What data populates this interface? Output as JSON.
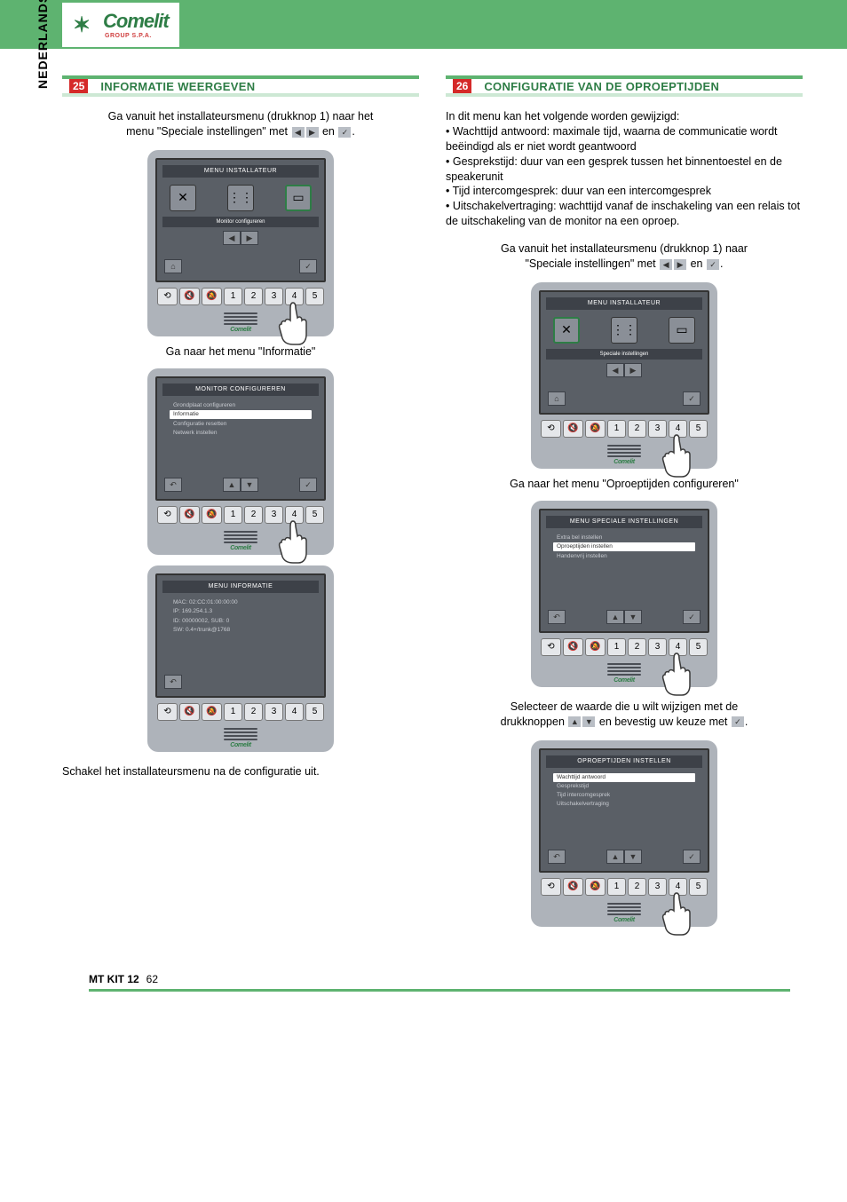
{
  "brand": {
    "name": "Comelit",
    "sub": "GROUP S.P.A."
  },
  "language_tab": "NEDERLANDS",
  "footer": {
    "doc": "MT KIT 12",
    "page": "62"
  },
  "left": {
    "section_num": "25",
    "section_title": "INFORMATIE WEERGEVEN",
    "intro1": "Ga vanuit het installateursmenu (drukknop 1) naar het",
    "intro2": "menu \"Speciale instellingen\" met ",
    "intro3": " en ",
    "intro_end": ".",
    "device1": {
      "title": "MENU INSTALLATEUR",
      "subbar": "Monitor configureren",
      "icons": [
        "✕",
        "⋮⋮",
        "▭"
      ],
      "highlight_idx": 2
    },
    "caption1": "Ga naar het menu \"Informatie\"",
    "device2": {
      "title": "MONITOR CONFIGUREREN",
      "menu": [
        {
          "t": "Grondplaat configureren",
          "sel": false
        },
        {
          "t": "Informatie",
          "sel": true
        },
        {
          "t": "Configuratie resetten",
          "sel": false
        },
        {
          "t": "Netwerk instellen",
          "sel": false
        }
      ]
    },
    "device3": {
      "title": "MENU INFORMATIE",
      "info": [
        "MAC: 02:CC:01:00:00:00",
        "IP: 169.254.1.3",
        "ID: 00000002, SUB: 0",
        "SW: 0.4+/trunk@1768"
      ]
    },
    "final": "Schakel het installateursmenu na de configuratie uit."
  },
  "right": {
    "section_num": "26",
    "section_title": "CONFIGURATIE VAN DE OPROEPTIJDEN",
    "intro": "In dit menu kan het volgende worden gewijzigd:",
    "bullets": [
      "• Wachttijd antwoord: maximale tijd, waarna de communicatie wordt beëindigd als er niet wordt geantwoord",
      "• Gesprekstijd: duur van een gesprek tussen het binnentoestel en de speakerunit",
      "• Tijd intercomgesprek: duur van een intercomgesprek",
      "• Uitschakelvertraging: wachttijd vanaf de inschakeling van een relais tot de uitschakeling van de monitor na een oproep."
    ],
    "step1a": "Ga vanuit het installateursmenu (drukknop 1) naar",
    "step1b": "\"Speciale instellingen\" met ",
    "step1c": " en ",
    "step1_end": ".",
    "device1": {
      "title": "MENU INSTALLATEUR",
      "subbar": "Speciale instellingen",
      "icons": [
        "✕",
        "⋮⋮",
        "▭"
      ],
      "highlight_idx": 0
    },
    "caption2": "Ga naar het menu \"Oproeptijden configureren\"",
    "device2": {
      "title": "MENU SPECIALE INSTELLINGEN",
      "menu": [
        {
          "t": "Extra bel instellen",
          "sel": false
        },
        {
          "t": "Oproeptijden instellen",
          "sel": true
        },
        {
          "t": "Handenvrij instellen",
          "sel": false
        }
      ]
    },
    "step3a": "Selecteer de waarde die u wilt wijzigen met de",
    "step3b": "drukknoppen ",
    "step3c": " en bevestig uw keuze met ",
    "step3_end": ".",
    "device3": {
      "title": "OPROEPTIJDEN INSTELLEN",
      "menu": [
        {
          "t": "Wachttijd antwoord",
          "sel": true
        },
        {
          "t": "Gesprekstijd",
          "sel": false
        },
        {
          "t": "Tijd intercomgesprek",
          "sel": false
        },
        {
          "t": "Uitschakelvertraging",
          "sel": false
        }
      ]
    }
  },
  "softkeys": {
    "icons": [
      "⟲",
      "🔇",
      "🔕"
    ],
    "nums": [
      "1",
      "2",
      "3",
      "4",
      "5"
    ]
  },
  "nav": {
    "home": "⌂",
    "left": "◀",
    "right": "▶",
    "up": "▲",
    "down": "▼",
    "check": "✓",
    "back": "↶"
  },
  "colors": {
    "green": "#5eb370",
    "dark_green": "#2e7d46",
    "light_green": "#cde8d4",
    "red": "#d52929",
    "device": "#aeb3ba",
    "screen": "#5a5f66"
  }
}
